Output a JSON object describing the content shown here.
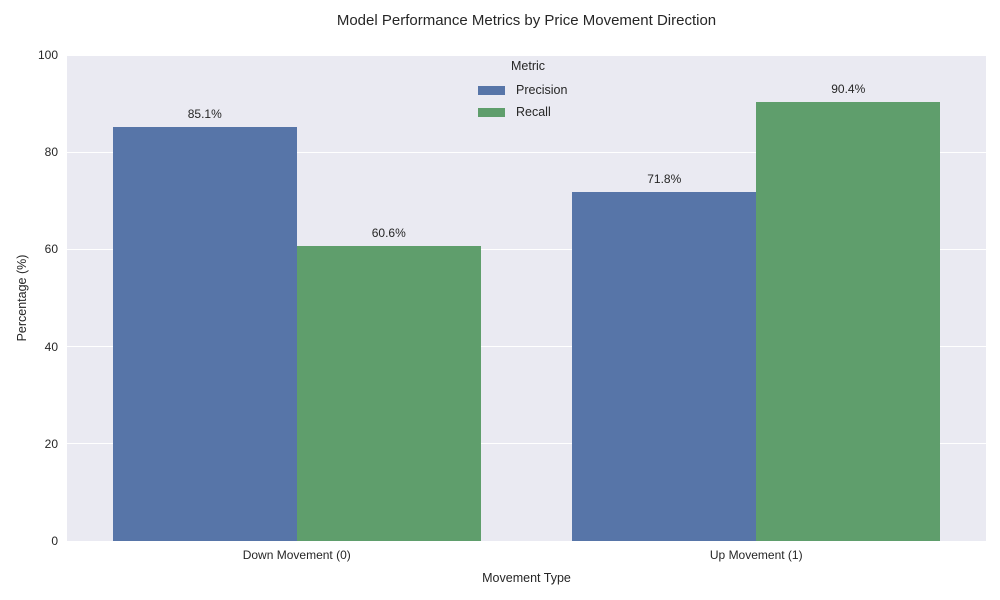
{
  "chart_data": {
    "type": "bar",
    "title": "Model Performance Metrics by Price Movement Direction",
    "xlabel": "Movement Type",
    "ylabel": "Percentage (%)",
    "categories": [
      "Down Movement (0)",
      "Up Movement (1)"
    ],
    "series": [
      {
        "name": "Precision",
        "color": "#5775a8",
        "values": [
          85.1,
          71.8
        ]
      },
      {
        "name": "Recall",
        "color": "#5f9e6c",
        "values": [
          60.6,
          90.4
        ]
      }
    ],
    "bar_labels": {
      "Precision": [
        "85.1%",
        "71.8%"
      ],
      "Recall": [
        "60.6%",
        "90.4%"
      ]
    },
    "ylim": [
      0,
      100
    ],
    "yticks": [
      0,
      20,
      40,
      60,
      80,
      100
    ],
    "legend": {
      "title": "Metric",
      "position": "upper center"
    },
    "grid": true,
    "colors": {
      "plot_background": "#eaeaf2",
      "grid_line": "#ffffff",
      "text": "#262626",
      "figure_background": "#ffffff"
    }
  }
}
